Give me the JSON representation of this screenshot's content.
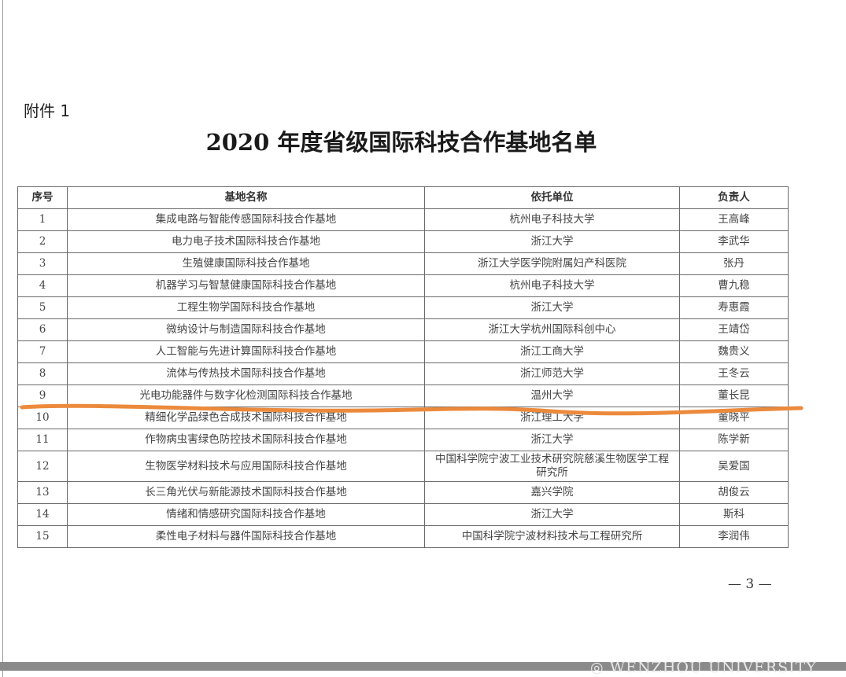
{
  "attachment_label": "附件 1",
  "title": "2020 年度省级国际科技合作基地名单",
  "table": {
    "headers": [
      "序号",
      "基地名称",
      "依托单位",
      "负责人"
    ],
    "rows": [
      [
        "1",
        "集成电路与智能传感国际科技合作基地",
        "杭州电子科技大学",
        "王高峰"
      ],
      [
        "2",
        "电力电子技术国际科技合作基地",
        "浙江大学",
        "李武华"
      ],
      [
        "3",
        "生殖健康国际科技合作基地",
        "浙江大学医学院附属妇产科医院",
        "张丹"
      ],
      [
        "4",
        "机器学习与智慧健康国际科技合作基地",
        "杭州电子科技大学",
        "曹九稳"
      ],
      [
        "5",
        "工程生物学国际科技合作基地",
        "浙江大学",
        "寿惠霞"
      ],
      [
        "6",
        "微纳设计与制造国际科技合作基地",
        "浙江大学杭州国际科创中心",
        "王靖岱"
      ],
      [
        "7",
        "人工智能与先进计算国际科技合作基地",
        "浙江工商大学",
        "魏贵义"
      ],
      [
        "8",
        "流体与传热技术国际科技合作基地",
        "浙江师范大学",
        "王冬云"
      ],
      [
        "9",
        "光电功能器件与数字化检测国际科技合作基地",
        "温州大学",
        "董长昆"
      ],
      [
        "10",
        "精细化学品绿色合成技术国际科技合作基地",
        "浙江理工大学",
        "董晓平"
      ],
      [
        "11",
        "作物病虫害绿色防控技术国际科技合作基地",
        "浙江大学",
        "陈学新"
      ],
      [
        "12",
        "生物医学材料技术与应用国际科技合作基地",
        "中国科学院宁波工业技术研究院慈溪生物医学工程研究所",
        "吴爱国"
      ],
      [
        "13",
        "长三角光伏与新能源技术国际科技合作基地",
        "嘉兴学院",
        "胡俊云"
      ],
      [
        "14",
        "情绪和情感研究国际科技合作基地",
        "浙江大学",
        "斯科"
      ],
      [
        "15",
        "柔性电子材料与器件国际科技合作基地",
        "中国科学院宁波材料技术与工程研究所",
        "李润伟"
      ]
    ]
  },
  "page_number": "— 3 —",
  "watermark": "WENZHOU UNIVERSITY",
  "colors": {
    "highlight_stroke": "#ec8a3c",
    "band": "#8a8a8a"
  }
}
